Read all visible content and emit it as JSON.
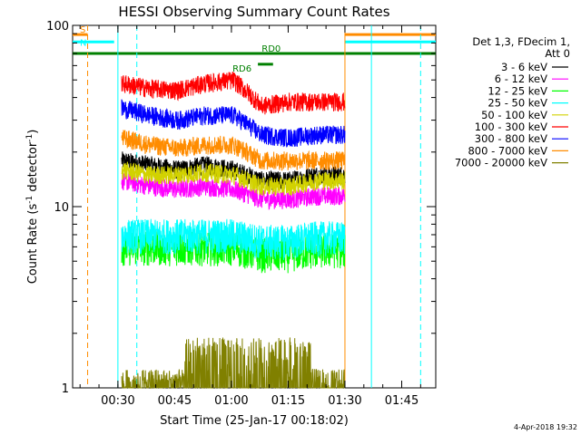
{
  "chart_data": {
    "type": "line",
    "title": "HESSI Observing Summary Count Rates",
    "xlabel": "Start Time (25-Jan-17 00:18:02)",
    "ylabel": "Count Rate (s⁻¹ detector⁻¹)",
    "ylabel_main": "Count Rate (s",
    "ylabel_sup1": "-1",
    "ylabel_mid": " detector",
    "ylabel_sup2": "-1",
    "ylabel_end": ")",
    "y_scale": "log",
    "ylim": [
      1,
      100
    ],
    "xlim": [
      "00:18:02",
      "01:54:00"
    ],
    "x_ticks": [
      "00:30",
      "00:45",
      "01:00",
      "01:15",
      "01:30",
      "01:45"
    ],
    "y_ticks": [
      "1",
      "10",
      "100"
    ],
    "grid": false,
    "legend_placement": "right",
    "legend_header": [
      "Det 1,3, FDecim 1,",
      "Att 0"
    ],
    "footer_date": "4-Apr-2018 19:32",
    "data_start": "00:31:00",
    "data_end": "01:30:00",
    "dip_time": "01:12:00",
    "series": [
      {
        "name": "3 - 6 keV",
        "color": "#000000",
        "values": [
          18,
          17,
          16,
          17,
          16,
          14,
          14,
          15,
          15
        ]
      },
      {
        "name": "6 - 12 keV",
        "color": "#ff00ff",
        "values": [
          14,
          13,
          12.5,
          13,
          12.5,
          11,
          11,
          11.5,
          11.5
        ]
      },
      {
        "name": "12 - 25 keV",
        "color": "#00ff00",
        "values": [
          6,
          6,
          6,
          6,
          6,
          5.5,
          5.5,
          5.8,
          5.8
        ]
      },
      {
        "name": "25 - 50 keV",
        "color": "#00ffff",
        "values": [
          7,
          7,
          7,
          7,
          7,
          6.5,
          6.5,
          6.8,
          6.8
        ]
      },
      {
        "name": "50 - 100 keV",
        "color": "#d2d200",
        "values": [
          16,
          15,
          15,
          15.5,
          15,
          13,
          13,
          14,
          14
        ]
      },
      {
        "name": "100 - 300 keV",
        "color": "#ff0000",
        "values": [
          48,
          45,
          44,
          48,
          50,
          36,
          38,
          38,
          38
        ]
      },
      {
        "name": "300 - 800 keV",
        "color": "#0000ff",
        "values": [
          35,
          32,
          30,
          32,
          32,
          25,
          24,
          25,
          25
        ]
      },
      {
        "name": "800 - 7000 keV",
        "color": "#ff8c00",
        "values": [
          24,
          22,
          21,
          22,
          22,
          18,
          18,
          18,
          18
        ]
      },
      {
        "name": "7000 - 20000 keV",
        "color": "#808000",
        "values": [
          1,
          1,
          1.5,
          1.8,
          1.8,
          1.5,
          1.2,
          1,
          1
        ]
      }
    ],
    "flags": [
      {
        "label": "S",
        "color": "#ff8c00",
        "start": "00:18:02",
        "end": "00:22:00",
        "level": 89
      },
      {
        "label": "N",
        "color": "#00ffff",
        "start": "00:18:02",
        "end": "00:29:00",
        "level": 81
      },
      {
        "label": "",
        "color": "#ff8c00",
        "start": "01:30:00",
        "end": "01:54:00",
        "level": 89
      },
      {
        "label": "",
        "color": "#00ffff",
        "start": "01:30:00",
        "end": "01:54:00",
        "level": 81
      },
      {
        "label": "RD6",
        "color": "#008000",
        "start": "01:07:00",
        "end": "01:11:00",
        "level": 61
      },
      {
        "label": "RD0",
        "color": "#008000",
        "start": "00:18:02",
        "end": "01:54:00",
        "level": 70
      }
    ],
    "orange_lines_dashed": [
      "00:22:00"
    ],
    "orange_lines_solid": [
      "01:30:00"
    ],
    "cyan_lines_solid": [
      "00:30:00",
      "01:37:00"
    ],
    "cyan_lines_dashed": [
      "00:35:00",
      "01:50:00"
    ]
  }
}
